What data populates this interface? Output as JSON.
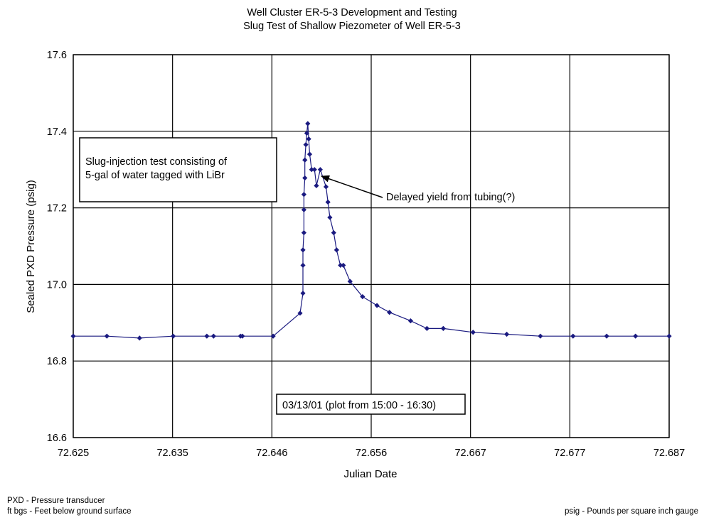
{
  "chart_data": {
    "type": "scatter",
    "title": "Well Cluster ER-5-3 Development and Testing",
    "subtitle": "Slug Test of Shallow Piezometer of Well ER-5-3",
    "xlabel": "Julian Date",
    "ylabel": "Sealed PXD Pressure (psig)",
    "xlim": [
      72.625,
      72.687
    ],
    "ylim": [
      16.6,
      17.6
    ],
    "x_ticks": [
      "72.625",
      "72.635",
      "72.646",
      "72.656",
      "72.667",
      "72.677",
      "72.687"
    ],
    "y_ticks": [
      "16.6",
      "16.8",
      "17.0",
      "17.2",
      "17.4",
      "17.6"
    ],
    "grid": true,
    "legend": "none",
    "series": [
      {
        "color": "#1a1a80",
        "points": [
          [
            72.625,
            16.865
          ],
          [
            72.6285,
            16.865
          ],
          [
            72.6319,
            16.86
          ],
          [
            72.6354,
            16.865
          ],
          [
            72.6389,
            16.865
          ],
          [
            72.6396,
            16.865
          ],
          [
            72.6424,
            16.865
          ],
          [
            72.6426,
            16.865
          ],
          [
            72.6458,
            16.865
          ],
          [
            72.6486,
            16.925
          ],
          [
            72.6489,
            16.977
          ],
          [
            72.6489,
            17.05
          ],
          [
            72.6489,
            17.09
          ],
          [
            72.649,
            17.135
          ],
          [
            72.649,
            17.195
          ],
          [
            72.649,
            17.235
          ],
          [
            72.6491,
            17.278
          ],
          [
            72.6491,
            17.325
          ],
          [
            72.6492,
            17.365
          ],
          [
            72.6493,
            17.395
          ],
          [
            72.6494,
            17.42
          ],
          [
            72.6495,
            17.38
          ],
          [
            72.6496,
            17.34
          ],
          [
            72.6498,
            17.3
          ],
          [
            72.6501,
            17.3
          ],
          [
            72.6503,
            17.258
          ],
          [
            72.6507,
            17.3
          ],
          [
            72.6513,
            17.255
          ],
          [
            72.6515,
            17.215
          ],
          [
            72.6517,
            17.175
          ],
          [
            72.6521,
            17.135
          ],
          [
            72.6524,
            17.09
          ],
          [
            72.6528,
            17.05
          ],
          [
            72.6531,
            17.05
          ],
          [
            72.6538,
            17.008
          ],
          [
            72.6551,
            16.968
          ],
          [
            72.6566,
            16.945
          ],
          [
            72.6579,
            16.927
          ],
          [
            72.6601,
            16.905
          ],
          [
            72.6618,
            16.885
          ],
          [
            72.6635,
            16.885
          ],
          [
            72.6666,
            16.875
          ],
          [
            72.6701,
            16.87
          ],
          [
            72.6736,
            16.865
          ],
          [
            72.677,
            16.865
          ],
          [
            72.6805,
            16.865
          ],
          [
            72.6835,
            16.865
          ],
          [
            72.687,
            16.865
          ]
        ]
      }
    ],
    "annotations": {
      "box_line1": "Slug-injection test consisting of",
      "box_line2": "5-gal of water tagged with LiBr",
      "arrow_label": "Delayed yield from tubing(?)",
      "date_note": "03/13/01 (plot from 15:00 - 16:30)"
    }
  },
  "footnotes": {
    "pxd": "PXD - Pressure transducer",
    "ftbgs": "ft bgs - Feet below ground surface",
    "psig": "psig - Pounds per square inch gauge"
  }
}
